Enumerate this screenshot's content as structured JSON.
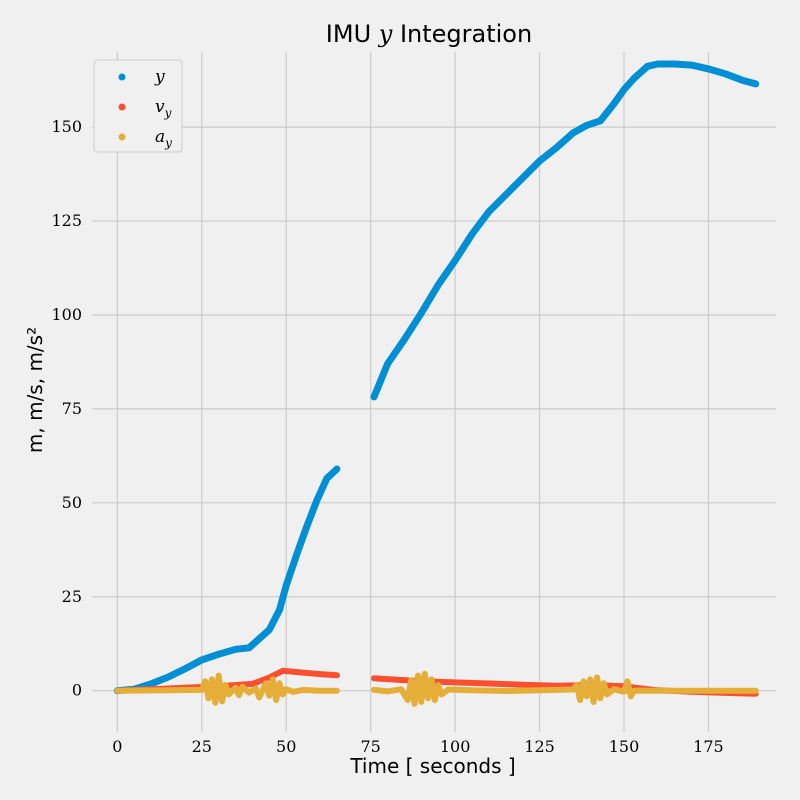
{
  "chart_data": {
    "type": "scatter",
    "title": "IMU y Integration",
    "xlabel": "Time [ seconds ]",
    "ylabel": "m, m/s, m/s²",
    "xlim": [
      -7.5,
      195
    ],
    "ylim": [
      -11,
      170
    ],
    "xticks": [
      0,
      25,
      50,
      75,
      100,
      125,
      150,
      175
    ],
    "yticks": [
      0,
      25,
      50,
      75,
      100,
      125,
      150
    ],
    "grid": true,
    "legend_position": "top-left",
    "series": [
      {
        "name": "y",
        "color": "#008fd5",
        "points": [
          [
            0,
            0
          ],
          [
            5,
            0.4
          ],
          [
            10,
            1.8
          ],
          [
            15,
            3.6
          ],
          [
            20,
            5.8
          ],
          [
            25,
            8.2
          ],
          [
            30,
            9.7
          ],
          [
            35,
            11.0
          ],
          [
            39,
            11.4
          ],
          [
            42,
            13.8
          ],
          [
            45,
            16.2
          ],
          [
            48,
            21.5
          ],
          [
            50,
            28
          ],
          [
            53,
            36
          ],
          [
            56,
            43.5
          ],
          [
            59,
            50.5
          ],
          [
            62,
            56.5
          ],
          [
            65,
            59
          ],
          null,
          [
            76,
            78.2
          ],
          [
            80,
            87
          ],
          [
            85,
            93.5
          ],
          [
            90,
            100.5
          ],
          [
            95,
            108
          ],
          [
            100,
            114.5
          ],
          [
            105,
            121.5
          ],
          [
            110,
            127.5
          ],
          [
            115,
            132
          ],
          [
            120,
            136.5
          ],
          [
            125,
            141
          ],
          [
            130,
            144.5
          ],
          [
            135,
            148.5
          ],
          [
            139,
            150.5
          ],
          [
            143,
            151.7
          ],
          [
            147,
            156.2
          ],
          [
            150,
            160
          ],
          [
            153,
            163
          ],
          [
            157,
            166.2
          ],
          [
            160,
            166.8
          ],
          [
            165,
            166.8
          ],
          [
            170,
            166.5
          ],
          [
            175,
            165.5
          ],
          [
            180,
            164.2
          ],
          [
            185,
            162.5
          ],
          [
            189,
            161.5
          ]
        ]
      },
      {
        "name": "v_y",
        "color": "#fc4f30",
        "points": [
          [
            0,
            0
          ],
          [
            10,
            0.4
          ],
          [
            20,
            0.8
          ],
          [
            30,
            1.2
          ],
          [
            40,
            1.8
          ],
          [
            45,
            3.5
          ],
          [
            49,
            5.3
          ],
          [
            55,
            4.8
          ],
          [
            60,
            4.4
          ],
          [
            65,
            4.1
          ],
          null,
          [
            76,
            3.3
          ],
          [
            90,
            2.5
          ],
          [
            100,
            2.2
          ],
          [
            110,
            1.9
          ],
          [
            120,
            1.6
          ],
          [
            130,
            1.3
          ],
          [
            140,
            1.5
          ],
          [
            150,
            1.2
          ],
          [
            155,
            0.6
          ],
          [
            160,
            0.1
          ],
          [
            170,
            -0.3
          ],
          [
            180,
            -0.6
          ],
          [
            189,
            -0.8
          ]
        ]
      },
      {
        "name": "a_y",
        "color": "#e5ae38",
        "points": [
          [
            0,
            0
          ],
          [
            15,
            0.1
          ],
          [
            25,
            0.2
          ],
          [
            26,
            2.5
          ],
          [
            27,
            -2
          ],
          [
            28,
            3
          ],
          [
            29,
            -3.2
          ],
          [
            30,
            4
          ],
          [
            31,
            -2.8
          ],
          [
            32,
            1.5
          ],
          [
            33,
            -1
          ],
          [
            35,
            0.8
          ],
          [
            36,
            -1.2
          ],
          [
            37,
            1
          ],
          [
            39,
            -0.5
          ],
          [
            41,
            0.6
          ],
          [
            42,
            -1.8
          ],
          [
            44,
            2
          ],
          [
            45,
            -1.3
          ],
          [
            46,
            3
          ],
          [
            47,
            -2.5
          ],
          [
            48,
            2
          ],
          [
            49,
            -1
          ],
          [
            50,
            0.4
          ],
          [
            52,
            -0.3
          ],
          [
            55,
            0.2
          ],
          [
            60,
            0
          ],
          [
            65,
            0
          ],
          null,
          [
            76,
            0.2
          ],
          [
            80,
            -0.2
          ],
          [
            84,
            0.4
          ],
          [
            86,
            -2.5
          ],
          [
            87,
            2.8
          ],
          [
            88,
            -3.5
          ],
          [
            89,
            4
          ],
          [
            90,
            -3
          ],
          [
            91,
            4.5
          ],
          [
            92,
            -2
          ],
          [
            93,
            3
          ],
          [
            94,
            -2.5
          ],
          [
            95,
            1.5
          ],
          [
            96,
            -1
          ],
          [
            98,
            0.3
          ],
          [
            105,
            0.1
          ],
          [
            115,
            -0.1
          ],
          [
            125,
            0.1
          ],
          [
            135,
            0.3
          ],
          [
            136,
            1.5
          ],
          [
            137,
            -2.5
          ],
          [
            138,
            2.5
          ],
          [
            139,
            -1.5
          ],
          [
            140,
            3
          ],
          [
            141,
            -3
          ],
          [
            142,
            3.5
          ],
          [
            143,
            -2
          ],
          [
            144,
            2
          ],
          [
            145,
            -1
          ],
          [
            147,
            0.4
          ],
          [
            150,
            -0.3
          ],
          [
            151,
            2.5
          ],
          [
            152,
            -1.5
          ],
          [
            153,
            0
          ],
          [
            160,
            0
          ],
          [
            170,
            0
          ],
          [
            180,
            0
          ],
          [
            189,
            0
          ]
        ]
      }
    ]
  }
}
